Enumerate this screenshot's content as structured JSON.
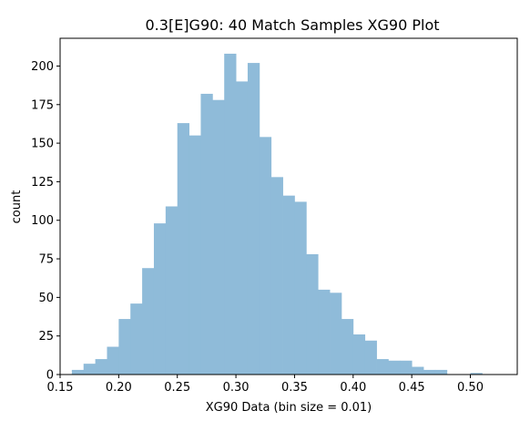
{
  "chart_data": {
    "type": "bar",
    "title": "0.3[E]G90: 40 Match Samples XG90 Plot",
    "xlabel": "XG90 Data (bin size = 0.01)",
    "ylabel": "count",
    "xlim": [
      0.15,
      0.54
    ],
    "ylim": [
      0,
      218
    ],
    "bin_width": 0.01,
    "bin_starts": [
      0.16,
      0.17,
      0.18,
      0.19,
      0.2,
      0.21,
      0.22,
      0.23,
      0.24,
      0.25,
      0.26,
      0.27,
      0.28,
      0.29,
      0.3,
      0.31,
      0.32,
      0.33,
      0.34,
      0.35,
      0.36,
      0.37,
      0.38,
      0.39,
      0.4,
      0.41,
      0.42,
      0.43,
      0.44,
      0.45,
      0.46,
      0.47,
      0.48,
      0.49,
      0.5
    ],
    "values": [
      3,
      7,
      10,
      18,
      36,
      46,
      69,
      98,
      109,
      163,
      155,
      182,
      178,
      208,
      190,
      202,
      154,
      128,
      116,
      112,
      78,
      55,
      53,
      36,
      26,
      22,
      10,
      9,
      9,
      5,
      3,
      3,
      0,
      0,
      1
    ],
    "xticks": [
      0.15,
      0.2,
      0.25,
      0.3,
      0.35,
      0.4,
      0.45,
      0.5
    ],
    "xtick_labels": [
      "0.15",
      "0.20",
      "0.25",
      "0.30",
      "0.35",
      "0.40",
      "0.45",
      "0.50"
    ],
    "yticks": [
      0,
      25,
      50,
      75,
      100,
      125,
      150,
      175,
      200
    ],
    "ytick_labels": [
      "0",
      "25",
      "50",
      "75",
      "100",
      "125",
      "150",
      "175",
      "200"
    ],
    "bar_color": "#8fbbd9",
    "grid": false,
    "legend": false
  }
}
